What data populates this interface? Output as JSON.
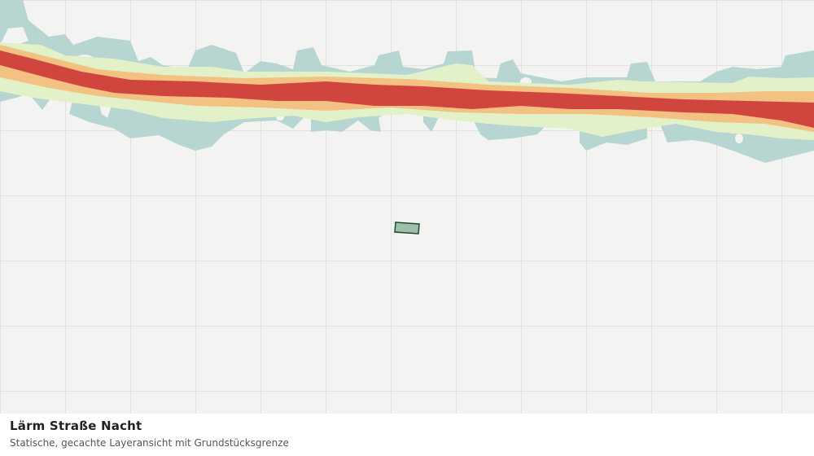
{
  "title": "Lärm Straße Nacht",
  "subtitle": "Statische, gecachte Layeransicht mit Grundstücksgrenze"
}
